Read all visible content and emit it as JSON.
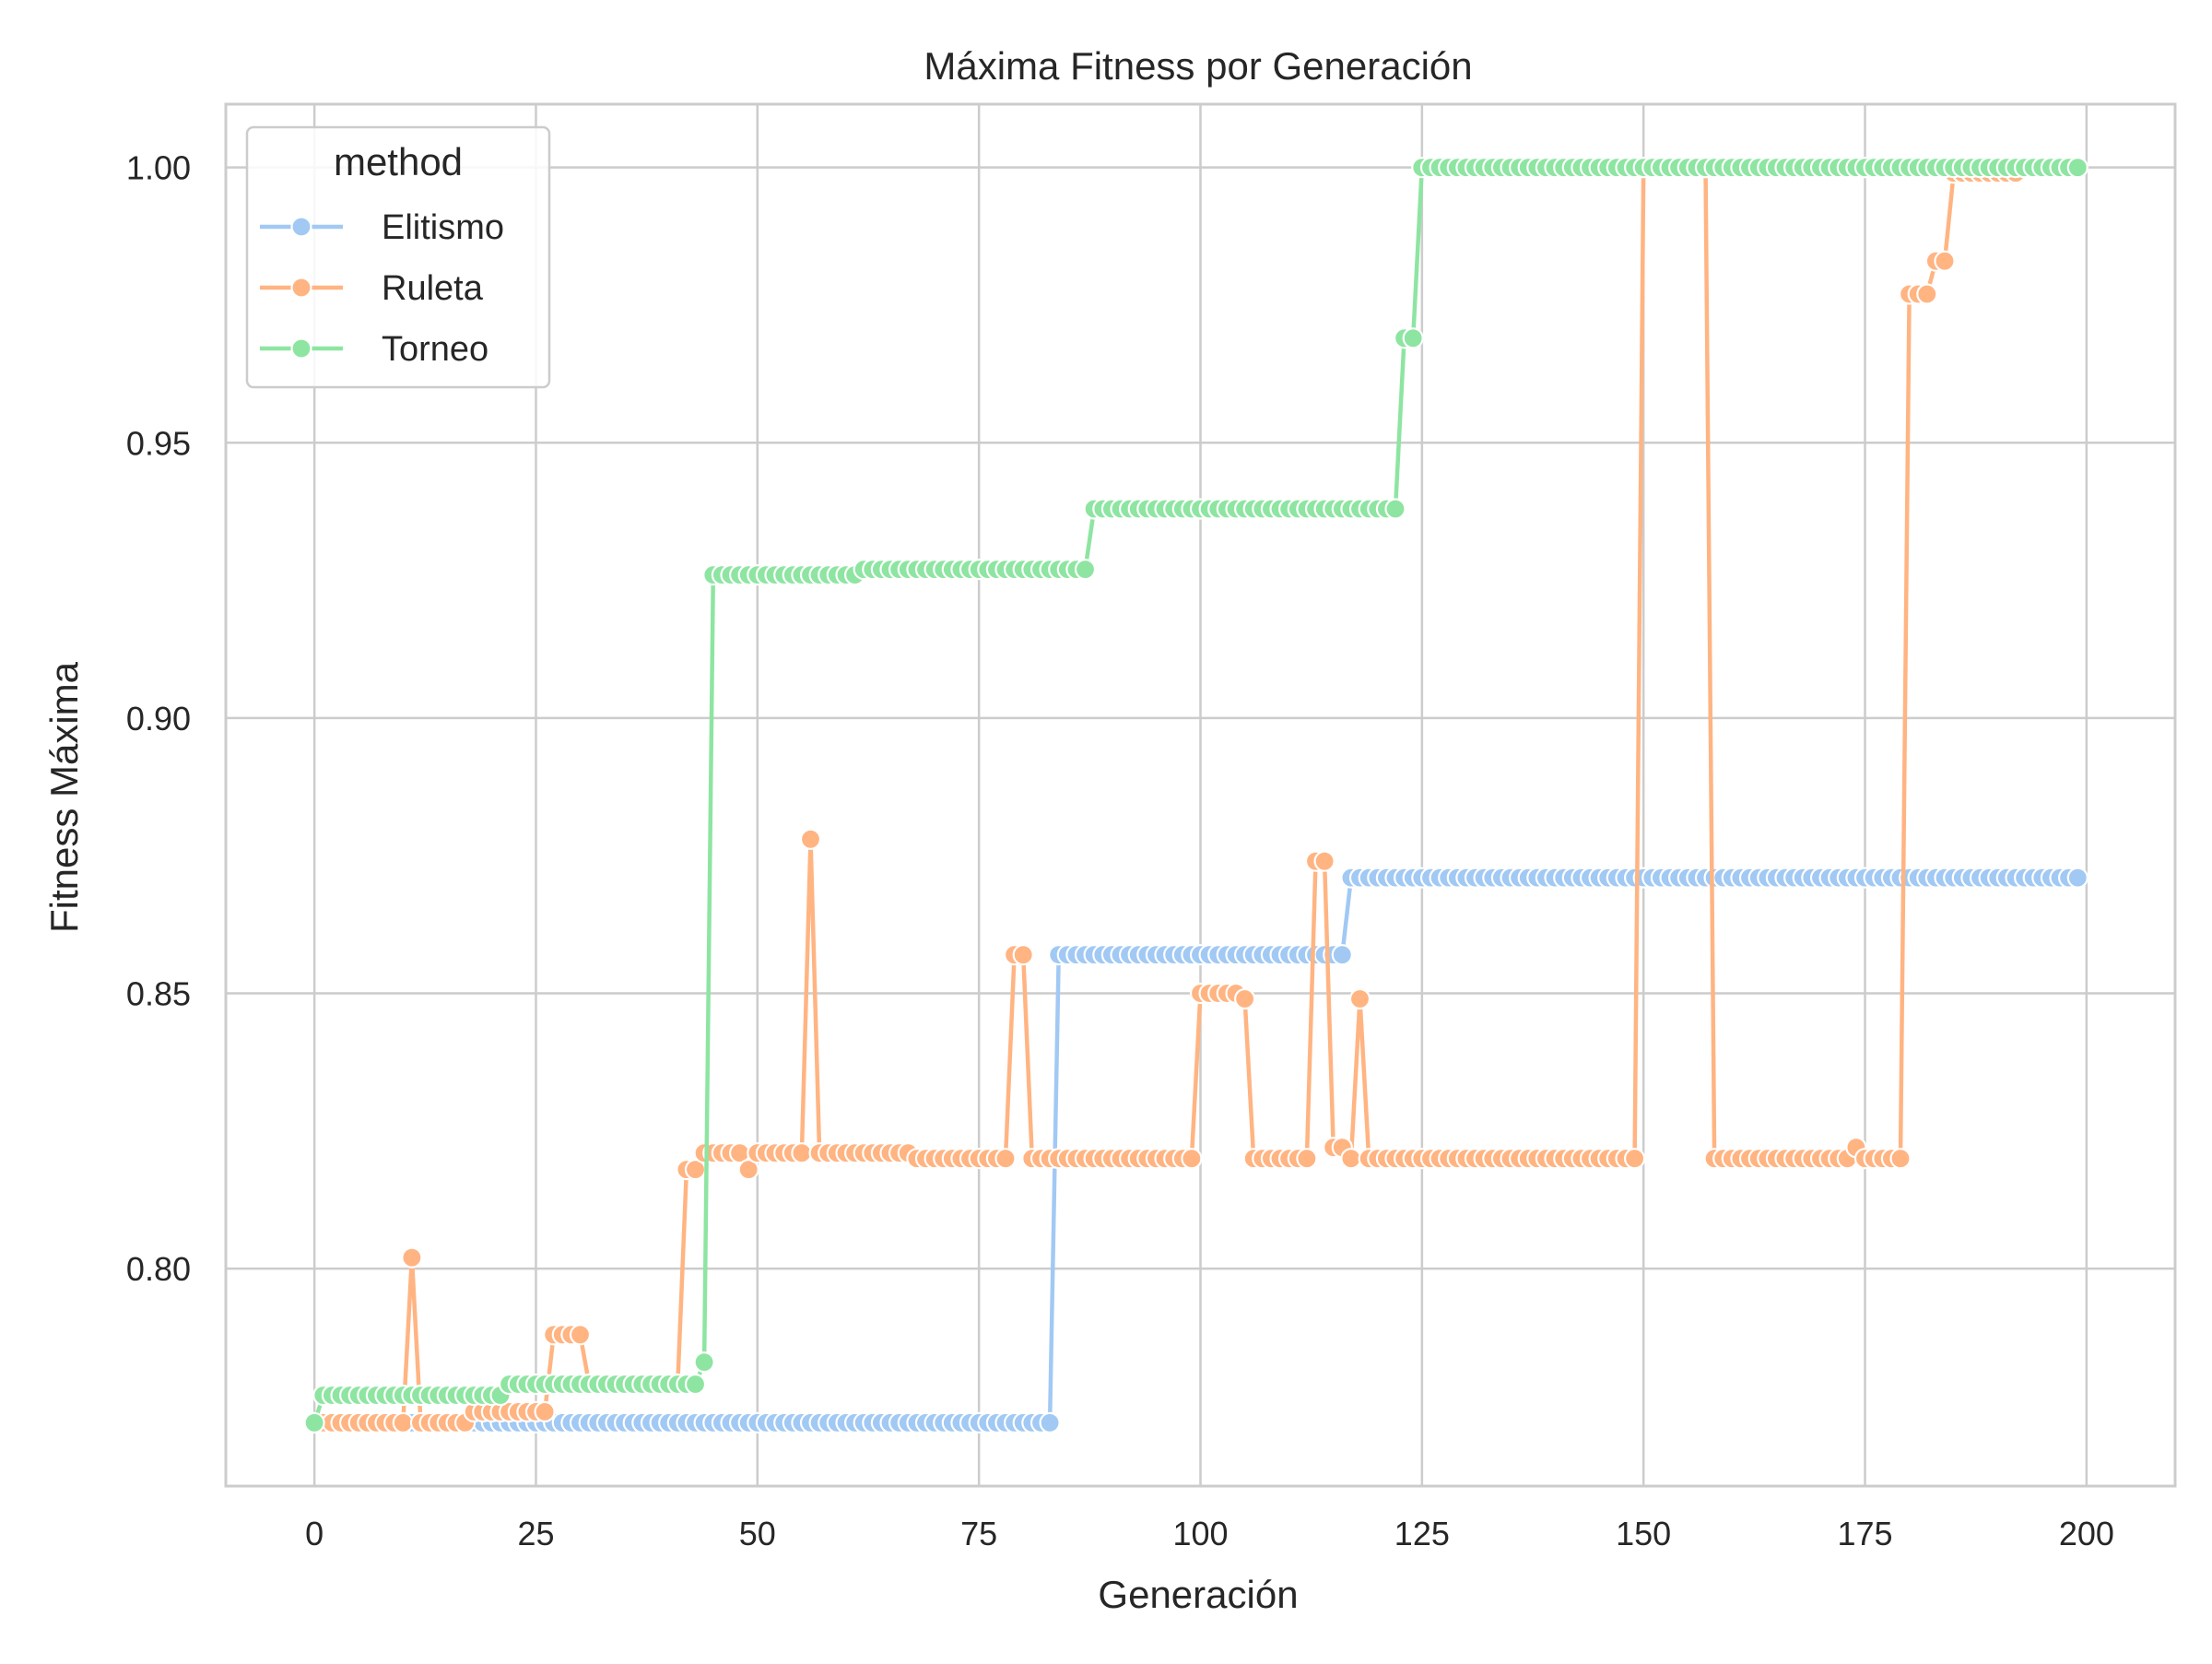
{
  "chart_data": {
    "type": "line",
    "title": "Máxima Fitness por Generación",
    "xlabel": "Generación",
    "ylabel": "Fitness Máxima",
    "xlim": [
      -10,
      210
    ],
    "ylim": [
      0.7605,
      1.0115
    ],
    "xticks": [
      0,
      25,
      50,
      75,
      100,
      125,
      150,
      175,
      200
    ],
    "xtick_labels": [
      "0",
      "25",
      "50",
      "75",
      "100",
      "125",
      "150",
      "175",
      "200"
    ],
    "yticks": [
      0.8,
      0.85,
      0.9,
      0.95,
      1.0
    ],
    "ytick_labels": [
      "0.80",
      "0.85",
      "0.90",
      "0.95",
      "1.00"
    ],
    "grid": true,
    "legend": {
      "title": "method",
      "placement": "top-left"
    },
    "series": [
      {
        "name": "Elitismo",
        "color": "#a1c9f4",
        "segments": [
          [
            0,
            83,
            0.772
          ],
          [
            84,
            116,
            0.857
          ],
          [
            117,
            199,
            0.871
          ]
        ]
      },
      {
        "name": "Ruleta",
        "color": "#ffb482",
        "segments": [
          [
            0,
            10,
            0.772
          ],
          [
            11,
            11,
            0.802
          ],
          [
            12,
            16,
            0.772
          ],
          [
            17,
            17,
            0.772
          ],
          [
            18,
            25,
            0.774
          ],
          [
            26,
            26,
            0.774
          ],
          [
            27,
            30,
            0.788
          ],
          [
            31,
            41,
            0.779
          ],
          [
            42,
            43,
            0.818
          ],
          [
            44,
            48,
            0.821
          ],
          [
            49,
            49,
            0.818
          ],
          [
            50,
            55,
            0.821
          ],
          [
            56,
            56,
            0.878
          ],
          [
            57,
            67,
            0.821
          ],
          [
            68,
            78,
            0.82
          ],
          [
            79,
            80,
            0.857
          ],
          [
            81,
            99,
            0.82
          ],
          [
            100,
            104,
            0.85
          ],
          [
            105,
            105,
            0.849
          ],
          [
            106,
            112,
            0.82
          ],
          [
            113,
            114,
            0.874
          ],
          [
            115,
            116,
            0.822
          ],
          [
            117,
            117,
            0.82
          ],
          [
            118,
            118,
            0.849
          ],
          [
            119,
            149,
            0.82
          ],
          [
            150,
            157,
            1.0
          ],
          [
            158,
            173,
            0.82
          ],
          [
            174,
            174,
            0.822
          ],
          [
            175,
            179,
            0.82
          ],
          [
            180,
            182,
            0.977
          ],
          [
            183,
            184,
            0.983
          ],
          [
            185,
            192,
            0.999
          ],
          [
            193,
            199,
            1.0
          ]
        ]
      },
      {
        "name": "Torneo",
        "color": "#8de5a1",
        "segments": [
          [
            0,
            0,
            0.772
          ],
          [
            1,
            21,
            0.777
          ],
          [
            22,
            43,
            0.779
          ],
          [
            44,
            44,
            0.783
          ],
          [
            45,
            61,
            0.926
          ],
          [
            62,
            87,
            0.927
          ],
          [
            88,
            122,
            0.938
          ],
          [
            123,
            124,
            0.969
          ],
          [
            125,
            199,
            1.0
          ]
        ]
      }
    ]
  }
}
